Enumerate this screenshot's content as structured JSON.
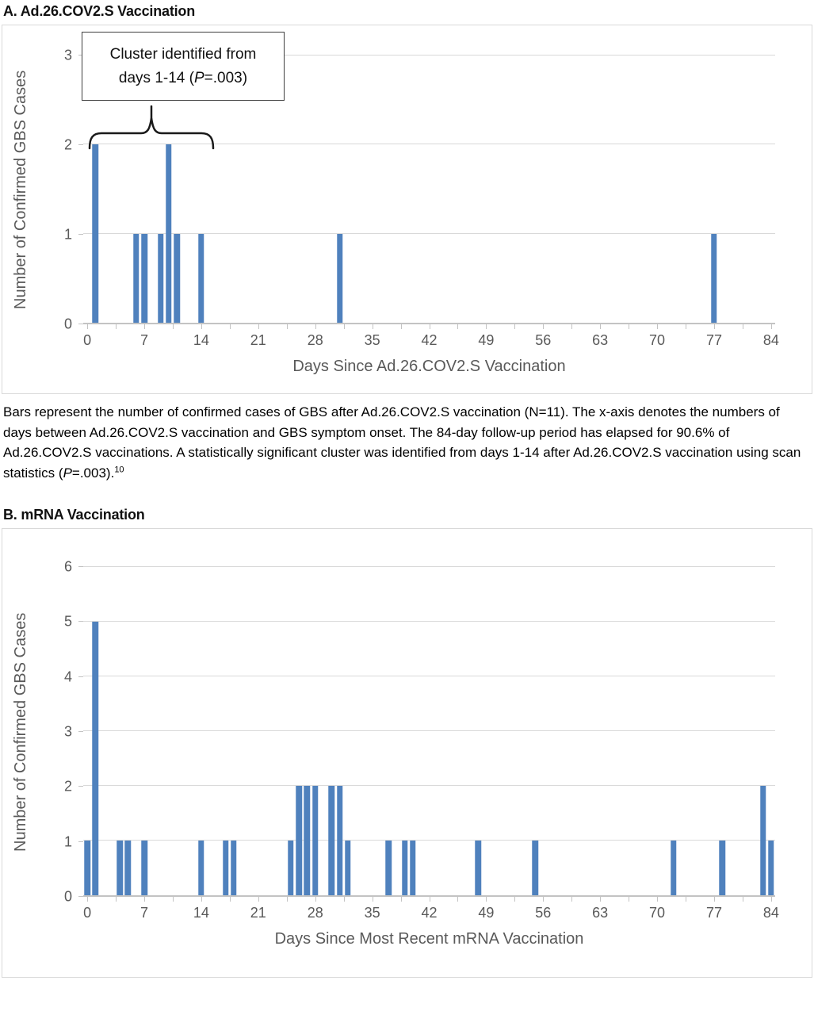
{
  "panel_a": {
    "title": "A. Ad.26.COV2.S Vaccination"
  },
  "panel_b": {
    "title": "B. mRNA Vaccination"
  },
  "caption": {
    "text_before_p": "Bars represent the number of confirmed cases of GBS after Ad.26.COV2.S vaccination (N=11). The x-axis denotes the numbers of days between Ad.26.COV2.S vaccination and GBS symptom onset. The 84-day follow-up period has elapsed for 90.6% of Ad.26.COV2.S vaccinations. A statistically significant cluster was identified from days 1-14 after Ad.26.COV2.S vaccination using scan statistics (",
    "p_italic": "P",
    "text_after_p": "=.003).",
    "superscript": "10"
  },
  "colors": {
    "bar": "#4F81BD",
    "gridline": "#D9D9D9",
    "axis": "#C3C3C3",
    "axis_text": "#595959",
    "chart_border": "#D9D9D9"
  },
  "chart_data": [
    {
      "type": "bar",
      "panel": "A",
      "title": "A. Ad.26.COV2.S Vaccination",
      "xlabel": "Days Since Ad.26.COV2.S Vaccination",
      "ylabel": "Number of Confirmed GBS Cases",
      "xlim": [
        0,
        84
      ],
      "ylim": [
        0,
        3
      ],
      "xtick_interval": 7,
      "minor_xtick_interval": 3.5,
      "ytick_interval": 1,
      "grid": true,
      "legend": false,
      "bar_color": "#4F81BD",
      "points": [
        [
          1,
          2
        ],
        [
          6,
          1
        ],
        [
          7,
          1
        ],
        [
          9,
          1
        ],
        [
          10,
          2
        ],
        [
          11,
          1
        ],
        [
          14,
          1
        ],
        [
          31,
          1
        ],
        [
          77,
          1
        ]
      ],
      "annotation": {
        "line1": "Cluster identified from",
        "line2_pre": "days 1-14 (",
        "line2_p": "P",
        "line2_post": "=.003)"
      }
    },
    {
      "type": "bar",
      "panel": "B",
      "title": "B. mRNA Vaccination",
      "xlabel": "Days Since Most Recent mRNA Vaccination",
      "ylabel": "Number of Confirmed GBS Cases",
      "xlim": [
        0,
        84
      ],
      "ylim": [
        0,
        6
      ],
      "xtick_interval": 7,
      "minor_xtick_interval": 3.5,
      "ytick_interval": 1,
      "grid": true,
      "legend": false,
      "bar_color": "#4F81BD",
      "points": [
        [
          0,
          1
        ],
        [
          1,
          5
        ],
        [
          4,
          1
        ],
        [
          5,
          1
        ],
        [
          7,
          1
        ],
        [
          14,
          1
        ],
        [
          17,
          1
        ],
        [
          18,
          1
        ],
        [
          25,
          1
        ],
        [
          26,
          2
        ],
        [
          27,
          2
        ],
        [
          28,
          2
        ],
        [
          30,
          2
        ],
        [
          31,
          2
        ],
        [
          32,
          1
        ],
        [
          37,
          1
        ],
        [
          39,
          1
        ],
        [
          40,
          1
        ],
        [
          48,
          1
        ],
        [
          55,
          1
        ],
        [
          72,
          1
        ],
        [
          78,
          1
        ],
        [
          83,
          2
        ],
        [
          84,
          1
        ]
      ]
    }
  ]
}
